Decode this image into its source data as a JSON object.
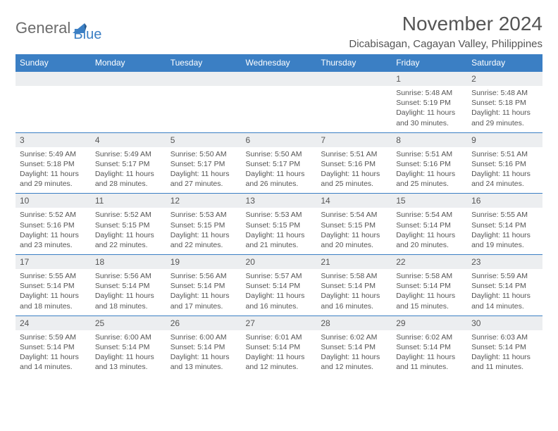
{
  "logo": {
    "text1": "General",
    "text2": "Blue"
  },
  "title": "November 2024",
  "location": "Dicabisagan, Cagayan Valley, Philippines",
  "colors": {
    "accent": "#3b7fc4",
    "header_text": "#ffffff",
    "daynum_bg": "#eceef0",
    "text": "#555555",
    "bg": "#ffffff"
  },
  "fonts": {
    "title_size": 28,
    "location_size": 15,
    "header_size": 12,
    "body_size": 10.5
  },
  "day_headers": [
    "Sunday",
    "Monday",
    "Tuesday",
    "Wednesday",
    "Thursday",
    "Friday",
    "Saturday"
  ],
  "weeks": [
    {
      "nums": [
        "",
        "",
        "",
        "",
        "",
        "1",
        "2"
      ],
      "cells": [
        null,
        null,
        null,
        null,
        null,
        {
          "sunrise": "Sunrise: 5:48 AM",
          "sunset": "Sunset: 5:19 PM",
          "daylight": "Daylight: 11 hours and 30 minutes."
        },
        {
          "sunrise": "Sunrise: 5:48 AM",
          "sunset": "Sunset: 5:18 PM",
          "daylight": "Daylight: 11 hours and 29 minutes."
        }
      ]
    },
    {
      "nums": [
        "3",
        "4",
        "5",
        "6",
        "7",
        "8",
        "9"
      ],
      "cells": [
        {
          "sunrise": "Sunrise: 5:49 AM",
          "sunset": "Sunset: 5:18 PM",
          "daylight": "Daylight: 11 hours and 29 minutes."
        },
        {
          "sunrise": "Sunrise: 5:49 AM",
          "sunset": "Sunset: 5:17 PM",
          "daylight": "Daylight: 11 hours and 28 minutes."
        },
        {
          "sunrise": "Sunrise: 5:50 AM",
          "sunset": "Sunset: 5:17 PM",
          "daylight": "Daylight: 11 hours and 27 minutes."
        },
        {
          "sunrise": "Sunrise: 5:50 AM",
          "sunset": "Sunset: 5:17 PM",
          "daylight": "Daylight: 11 hours and 26 minutes."
        },
        {
          "sunrise": "Sunrise: 5:51 AM",
          "sunset": "Sunset: 5:16 PM",
          "daylight": "Daylight: 11 hours and 25 minutes."
        },
        {
          "sunrise": "Sunrise: 5:51 AM",
          "sunset": "Sunset: 5:16 PM",
          "daylight": "Daylight: 11 hours and 25 minutes."
        },
        {
          "sunrise": "Sunrise: 5:51 AM",
          "sunset": "Sunset: 5:16 PM",
          "daylight": "Daylight: 11 hours and 24 minutes."
        }
      ]
    },
    {
      "nums": [
        "10",
        "11",
        "12",
        "13",
        "14",
        "15",
        "16"
      ],
      "cells": [
        {
          "sunrise": "Sunrise: 5:52 AM",
          "sunset": "Sunset: 5:16 PM",
          "daylight": "Daylight: 11 hours and 23 minutes."
        },
        {
          "sunrise": "Sunrise: 5:52 AM",
          "sunset": "Sunset: 5:15 PM",
          "daylight": "Daylight: 11 hours and 22 minutes."
        },
        {
          "sunrise": "Sunrise: 5:53 AM",
          "sunset": "Sunset: 5:15 PM",
          "daylight": "Daylight: 11 hours and 22 minutes."
        },
        {
          "sunrise": "Sunrise: 5:53 AM",
          "sunset": "Sunset: 5:15 PM",
          "daylight": "Daylight: 11 hours and 21 minutes."
        },
        {
          "sunrise": "Sunrise: 5:54 AM",
          "sunset": "Sunset: 5:15 PM",
          "daylight": "Daylight: 11 hours and 20 minutes."
        },
        {
          "sunrise": "Sunrise: 5:54 AM",
          "sunset": "Sunset: 5:14 PM",
          "daylight": "Daylight: 11 hours and 20 minutes."
        },
        {
          "sunrise": "Sunrise: 5:55 AM",
          "sunset": "Sunset: 5:14 PM",
          "daylight": "Daylight: 11 hours and 19 minutes."
        }
      ]
    },
    {
      "nums": [
        "17",
        "18",
        "19",
        "20",
        "21",
        "22",
        "23"
      ],
      "cells": [
        {
          "sunrise": "Sunrise: 5:55 AM",
          "sunset": "Sunset: 5:14 PM",
          "daylight": "Daylight: 11 hours and 18 minutes."
        },
        {
          "sunrise": "Sunrise: 5:56 AM",
          "sunset": "Sunset: 5:14 PM",
          "daylight": "Daylight: 11 hours and 18 minutes."
        },
        {
          "sunrise": "Sunrise: 5:56 AM",
          "sunset": "Sunset: 5:14 PM",
          "daylight": "Daylight: 11 hours and 17 minutes."
        },
        {
          "sunrise": "Sunrise: 5:57 AM",
          "sunset": "Sunset: 5:14 PM",
          "daylight": "Daylight: 11 hours and 16 minutes."
        },
        {
          "sunrise": "Sunrise: 5:58 AM",
          "sunset": "Sunset: 5:14 PM",
          "daylight": "Daylight: 11 hours and 16 minutes."
        },
        {
          "sunrise": "Sunrise: 5:58 AM",
          "sunset": "Sunset: 5:14 PM",
          "daylight": "Daylight: 11 hours and 15 minutes."
        },
        {
          "sunrise": "Sunrise: 5:59 AM",
          "sunset": "Sunset: 5:14 PM",
          "daylight": "Daylight: 11 hours and 14 minutes."
        }
      ]
    },
    {
      "nums": [
        "24",
        "25",
        "26",
        "27",
        "28",
        "29",
        "30"
      ],
      "cells": [
        {
          "sunrise": "Sunrise: 5:59 AM",
          "sunset": "Sunset: 5:14 PM",
          "daylight": "Daylight: 11 hours and 14 minutes."
        },
        {
          "sunrise": "Sunrise: 6:00 AM",
          "sunset": "Sunset: 5:14 PM",
          "daylight": "Daylight: 11 hours and 13 minutes."
        },
        {
          "sunrise": "Sunrise: 6:00 AM",
          "sunset": "Sunset: 5:14 PM",
          "daylight": "Daylight: 11 hours and 13 minutes."
        },
        {
          "sunrise": "Sunrise: 6:01 AM",
          "sunset": "Sunset: 5:14 PM",
          "daylight": "Daylight: 11 hours and 12 minutes."
        },
        {
          "sunrise": "Sunrise: 6:02 AM",
          "sunset": "Sunset: 5:14 PM",
          "daylight": "Daylight: 11 hours and 12 minutes."
        },
        {
          "sunrise": "Sunrise: 6:02 AM",
          "sunset": "Sunset: 5:14 PM",
          "daylight": "Daylight: 11 hours and 11 minutes."
        },
        {
          "sunrise": "Sunrise: 6:03 AM",
          "sunset": "Sunset: 5:14 PM",
          "daylight": "Daylight: 11 hours and 11 minutes."
        }
      ]
    }
  ]
}
